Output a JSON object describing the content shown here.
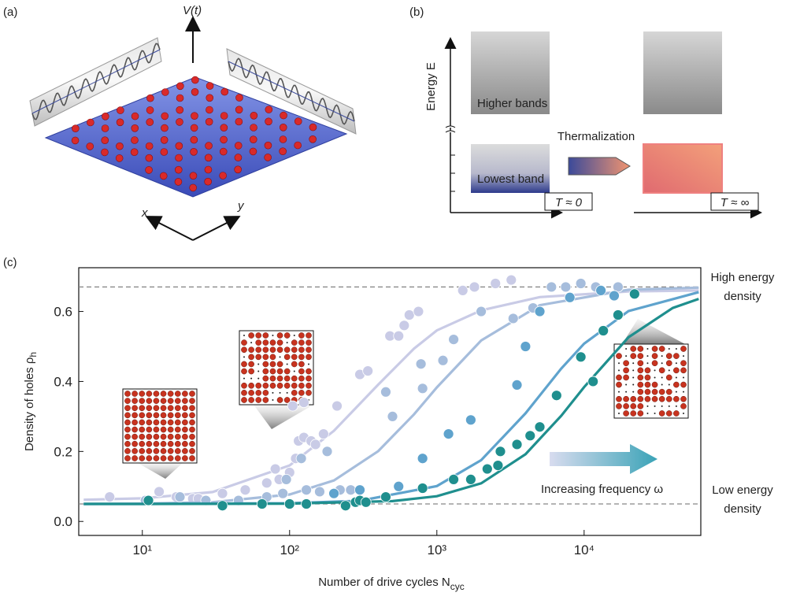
{
  "labels": {
    "a": "(a)",
    "b": "(b)",
    "c": "(c)"
  },
  "panel_a": {
    "potential": "V(t)",
    "x_axis": "x",
    "y_axis": "y"
  },
  "panel_b": {
    "ylabel": "Energy E",
    "higher": "Higher bands",
    "lowest": "Lowest band",
    "process": "Thermalization",
    "cold": "T ≈ 0",
    "hot": "T ≈ ∞"
  },
  "chart_data": {
    "type": "scatter",
    "xlabel": {
      "text": "Number of drive cycles N",
      "sub": "cyc"
    },
    "ylabel": {
      "text": "Density of holes ρ",
      "sub": "h"
    },
    "annotations": {
      "high": [
        "High energy",
        "density"
      ],
      "low": [
        "Low energy",
        "density"
      ],
      "arrow": "Increasing frequency ω"
    },
    "xscale": "log",
    "xlim": [
      3.7,
      62000
    ],
    "ylim": [
      -0.04,
      0.725
    ],
    "xticks": [
      {
        "value": 10,
        "label": "10¹"
      },
      {
        "value": 100,
        "label": "10²"
      },
      {
        "value": 1000,
        "label": "10³"
      },
      {
        "value": 10000,
        "label": "10⁴"
      }
    ],
    "yticks": [
      {
        "value": 0,
        "label": "0.0"
      },
      0.2,
      0.4,
      0.6
    ],
    "reference_lines": [
      0.67,
      0.05
    ],
    "series": [
      {
        "color": "#c9cbe6",
        "x": [
          6,
          13,
          17,
          22,
          24,
          35,
          50,
          70,
          80,
          85,
          100,
          105,
          110,
          115,
          125,
          125,
          140,
          150,
          170,
          210,
          300,
          340,
          480,
          550,
          600,
          650,
          750,
          1500,
          1800,
          2500,
          3200
        ],
        "values": [
          0.07,
          0.085,
          0.07,
          0.065,
          0.065,
          0.08,
          0.09,
          0.11,
          0.15,
          0.12,
          0.14,
          0.33,
          0.18,
          0.23,
          0.24,
          0.34,
          0.23,
          0.22,
          0.25,
          0.33,
          0.42,
          0.43,
          0.53,
          0.53,
          0.56,
          0.59,
          0.6,
          0.66,
          0.67,
          0.68,
          0.69
        ],
        "fit_x": [
          4,
          10,
          30,
          100,
          200,
          400,
          700,
          1000,
          2000,
          5000,
          20000,
          60000
        ],
        "fit_values": [
          0.062,
          0.066,
          0.084,
          0.16,
          0.259,
          0.391,
          0.494,
          0.546,
          0.603,
          0.641,
          0.657,
          0.66
        ]
      },
      {
        "color": "#a6bddc",
        "x": [
          10.5,
          18,
          27,
          45,
          70,
          90,
          95,
          120,
          130,
          160,
          180,
          220,
          260,
          450,
          500,
          780,
          800,
          1100,
          1300,
          2000,
          3300,
          4500,
          6000,
          7500,
          9500,
          12000,
          17000
        ],
        "values": [
          0.06,
          0.07,
          0.06,
          0.06,
          0.07,
          0.08,
          0.12,
          0.18,
          0.09,
          0.085,
          0.2,
          0.09,
          0.09,
          0.37,
          0.3,
          0.45,
          0.38,
          0.46,
          0.52,
          0.6,
          0.58,
          0.61,
          0.67,
          0.67,
          0.68,
          0.67,
          0.67
        ],
        "fit_x": [
          4,
          10,
          30,
          100,
          200,
          400,
          700,
          1000,
          2000,
          5000,
          20000,
          60000
        ],
        "fit_values": [
          0.05,
          0.051,
          0.055,
          0.077,
          0.117,
          0.201,
          0.306,
          0.383,
          0.517,
          0.618,
          0.662,
          0.668
        ]
      },
      {
        "color": "#5fa3cd",
        "x": [
          200,
          300,
          550,
          800,
          1200,
          1700,
          3500,
          4000,
          5000,
          8000,
          13000,
          16000
        ],
        "values": [
          0.08,
          0.09,
          0.1,
          0.18,
          0.25,
          0.29,
          0.39,
          0.5,
          0.6,
          0.64,
          0.66,
          0.645
        ],
        "fit_x": [
          4,
          10,
          100,
          300,
          1000,
          2000,
          4000,
          7000,
          10000,
          20000,
          60000
        ],
        "fit_values": [
          0.05,
          0.05,
          0.052,
          0.059,
          0.101,
          0.175,
          0.309,
          0.437,
          0.508,
          0.601,
          0.655
        ]
      },
      {
        "color": "#1f8f8e",
        "x": [
          11,
          35,
          65,
          100,
          130,
          240,
          280,
          300,
          330,
          450,
          800,
          1300,
          1700,
          2200,
          2600,
          2700,
          3500,
          4300,
          5000,
          6500,
          9500,
          11500,
          13500,
          17000,
          22000
        ],
        "values": [
          0.06,
          0.045,
          0.05,
          0.05,
          0.05,
          0.045,
          0.055,
          0.06,
          0.055,
          0.07,
          0.095,
          0.12,
          0.12,
          0.15,
          0.16,
          0.2,
          0.22,
          0.245,
          0.27,
          0.36,
          0.47,
          0.4,
          0.545,
          0.59,
          0.65
        ],
        "fit_x": [
          4,
          10,
          100,
          500,
          1000,
          2000,
          4000,
          7000,
          10000,
          20000,
          40000,
          60000
        ],
        "fit_values": [
          0.05,
          0.05,
          0.051,
          0.058,
          0.072,
          0.109,
          0.192,
          0.302,
          0.384,
          0.526,
          0.61,
          0.636
        ]
      }
    ]
  }
}
